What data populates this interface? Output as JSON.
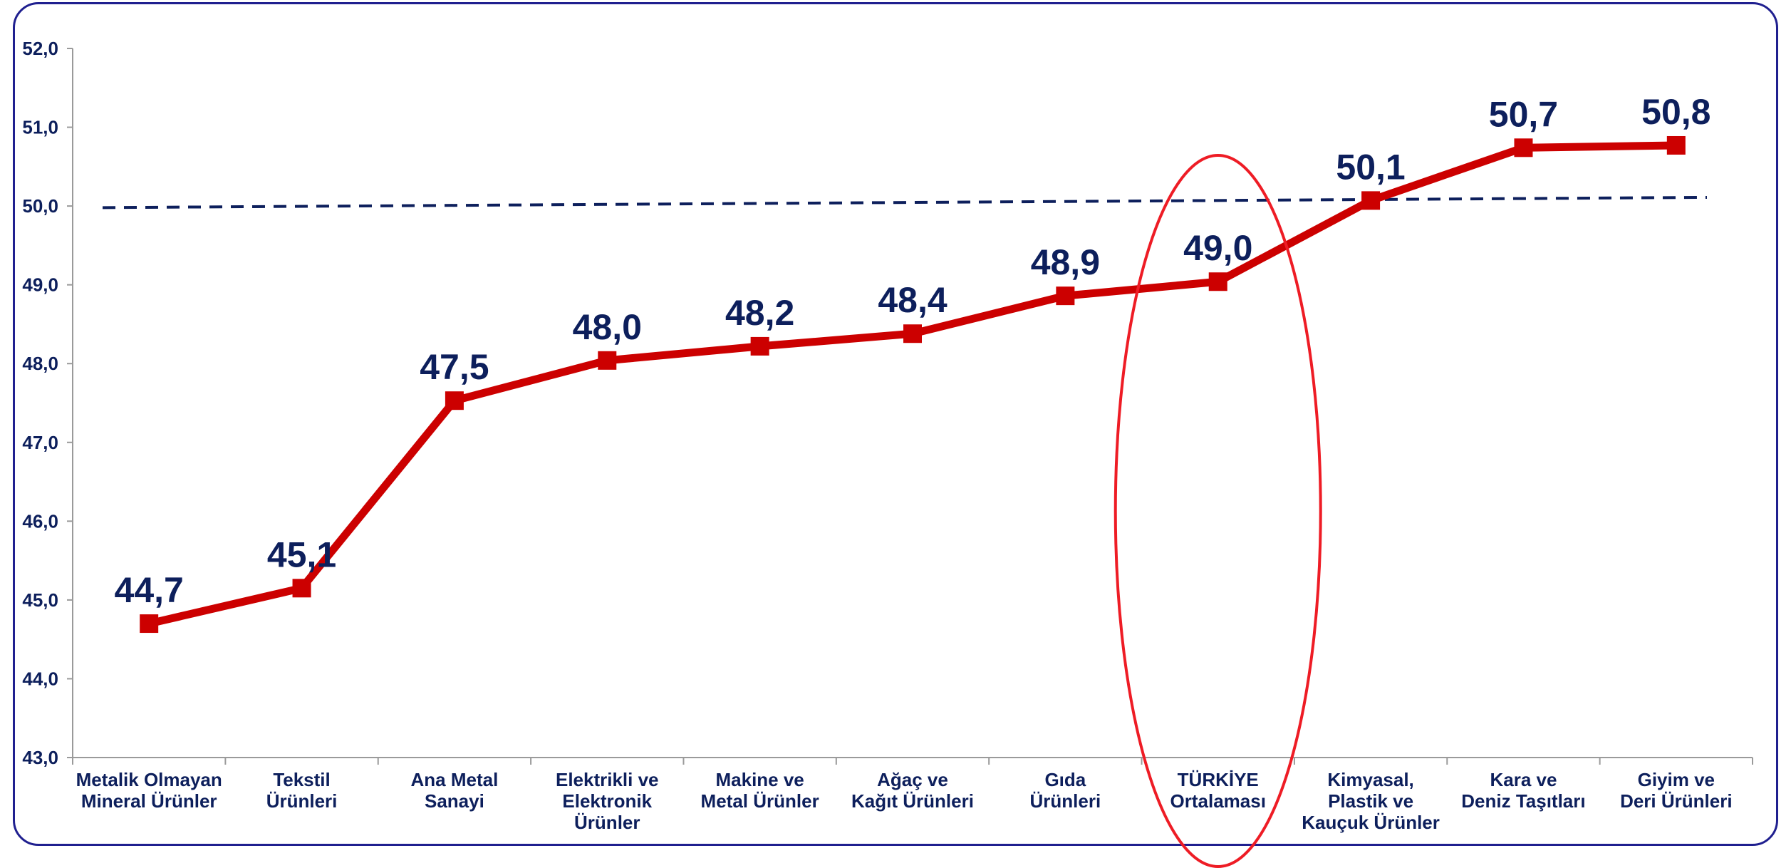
{
  "chart_data": {
    "type": "line",
    "title": "",
    "xlabel": "",
    "ylabel": "",
    "categories": [
      [
        "Metalik Olmayan",
        "Mineral Ürünler"
      ],
      [
        "Tekstil",
        "Ürünleri"
      ],
      [
        "Ana Metal",
        "Sanayi"
      ],
      [
        "Elektrikli ve",
        "Elektronik",
        "Ürünler"
      ],
      [
        "Makine ve",
        "Metal Ürünler"
      ],
      [
        "Ağaç ve",
        "Kağıt Ürünleri"
      ],
      [
        "Gıda",
        "Ürünleri"
      ],
      [
        "TÜRKİYE",
        "Ortalaması"
      ],
      [
        "Kimyasal,",
        "Plastik ve",
        "Kauçuk Ürünler"
      ],
      [
        "Kara ve",
        "Deniz Taşıtları"
      ],
      [
        "Giyim ve",
        "Deri Ürünleri"
      ]
    ],
    "values": [
      44.7,
      45.15,
      47.53,
      48.04,
      48.22,
      48.38,
      48.86,
      49.04,
      50.07,
      50.74,
      50.77
    ],
    "value_labels": [
      "44,7",
      "45,1",
      "47,5",
      "48,0",
      "48,2",
      "48,4",
      "48,9",
      "49,0",
      "50,1",
      "50,7",
      "50,8"
    ],
    "ylim": [
      43,
      52
    ],
    "yticks": [
      43,
      44,
      45,
      46,
      47,
      48,
      49,
      50,
      51,
      52
    ],
    "ytick_labels": [
      "43,0",
      "44,0",
      "45,0",
      "46,0",
      "47,0",
      "48,0",
      "49,0",
      "50,0",
      "51,0",
      "52,0"
    ],
    "reference_line": {
      "start": 49.98,
      "end": 50.11,
      "style": "dashed",
      "color": "#0d1f5c"
    },
    "highlight_category": 7,
    "highlight_color": "#ee1c25",
    "series_color": "#cc0000",
    "label_color": "#0d1f5c",
    "axis_color": "#9a9a9a",
    "grid": false,
    "legend": "none"
  }
}
